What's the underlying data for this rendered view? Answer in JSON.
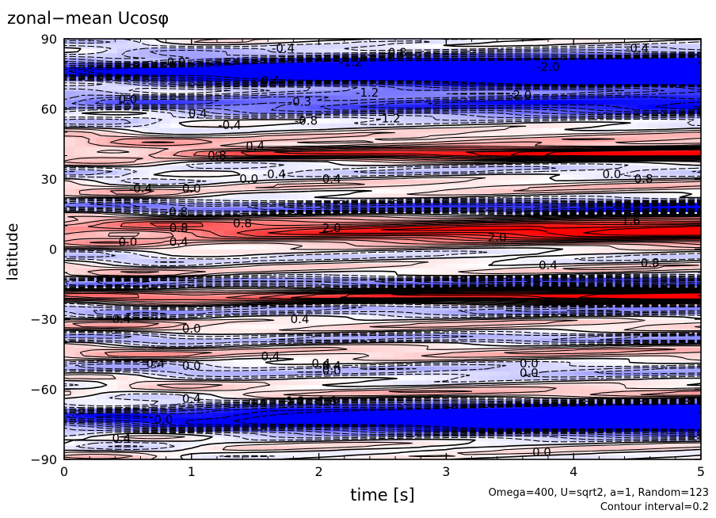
{
  "chart_data": {
    "type": "heatmap",
    "title": "zonal−mean Ucosφ",
    "xlabel": "time [s]",
    "ylabel": "latitude",
    "xlim": [
      0,
      5
    ],
    "ylim": [
      -90,
      90
    ],
    "x_ticks": [
      0,
      1,
      2,
      3,
      4,
      5
    ],
    "x_tick_labels": [
      "0",
      "1",
      "2",
      "3",
      "4",
      "5"
    ],
    "y_ticks": [
      -90,
      -60,
      -30,
      0,
      30,
      60,
      90
    ],
    "y_tick_labels": [
      "−90",
      "−60",
      "−30",
      "0",
      "30",
      "60",
      "90"
    ],
    "contour_interval": 0.2,
    "colormap": {
      "negative": "#0000ff",
      "zero": "#ffffff",
      "positive": "#ff0000"
    },
    "annotations": [
      "Omega=400, U=sqrt2, a=1, Random=123",
      "Contour interval=0.2"
    ],
    "contour_labels": [
      {
        "t": 0.88,
        "lat": 80,
        "text": "0.0"
      },
      {
        "t": 1.72,
        "lat": 86,
        "text": "-0.4"
      },
      {
        "t": 2.6,
        "lat": 84,
        "text": "-0.8"
      },
      {
        "t": 2.25,
        "lat": 80,
        "text": "-1.2"
      },
      {
        "t": 4.5,
        "lat": 86,
        "text": "-0.4"
      },
      {
        "t": 1.62,
        "lat": 72,
        "text": "0.4"
      },
      {
        "t": 0.5,
        "lat": 64,
        "text": "0.0"
      },
      {
        "t": 2.38,
        "lat": 67,
        "text": "-1.2"
      },
      {
        "t": 3.8,
        "lat": 78,
        "text": "-2.0"
      },
      {
        "t": 3.58,
        "lat": 66,
        "text": "-2.0"
      },
      {
        "t": 1.85,
        "lat": 63,
        "text": "-0.3"
      },
      {
        "t": 1.9,
        "lat": 55,
        "text": "-0.8"
      },
      {
        "t": 2.55,
        "lat": 56,
        "text": "-1.2"
      },
      {
        "t": 1.05,
        "lat": 58,
        "text": "0.4"
      },
      {
        "t": 1.3,
        "lat": 53,
        "text": "-0.4"
      },
      {
        "t": 1.5,
        "lat": 44,
        "text": "0.4"
      },
      {
        "t": 1.2,
        "lat": 40,
        "text": "0.8"
      },
      {
        "t": 1.65,
        "lat": 32,
        "text": "-0.4"
      },
      {
        "t": 0.6,
        "lat": 26,
        "text": "-0.4"
      },
      {
        "t": 1.0,
        "lat": 26,
        "text": "0.0"
      },
      {
        "t": 1.45,
        "lat": 30,
        "text": "0.0"
      },
      {
        "t": 2.1,
        "lat": 30,
        "text": "0.4"
      },
      {
        "t": 4.3,
        "lat": 32,
        "text": "0.0"
      },
      {
        "t": 4.55,
        "lat": 30,
        "text": "0.8"
      },
      {
        "t": 0.88,
        "lat": 16,
        "text": "-0.8"
      },
      {
        "t": 0.9,
        "lat": 9,
        "text": "0.8"
      },
      {
        "t": 1.4,
        "lat": 11,
        "text": "0.8"
      },
      {
        "t": 2.1,
        "lat": 9,
        "text": "2.0"
      },
      {
        "t": 3.4,
        "lat": 5,
        "text": "2.0"
      },
      {
        "t": 0.5,
        "lat": 3,
        "text": "0.0"
      },
      {
        "t": 0.9,
        "lat": 3,
        "text": "0.4"
      },
      {
        "t": 4.45,
        "lat": 12,
        "text": "1.6"
      },
      {
        "t": 3.8,
        "lat": -7,
        "text": "0.4"
      },
      {
        "t": 4.6,
        "lat": -6,
        "text": "0.8"
      },
      {
        "t": 0.45,
        "lat": -30,
        "text": "0.4"
      },
      {
        "t": 1.0,
        "lat": -34,
        "text": "0.0"
      },
      {
        "t": 1.85,
        "lat": -30,
        "text": "0.4"
      },
      {
        "t": 1.62,
        "lat": -46,
        "text": "0.4"
      },
      {
        "t": 2.0,
        "lat": -49,
        "text": "-0.4"
      },
      {
        "t": 2.1,
        "lat": -50,
        "text": "0.4"
      },
      {
        "t": 0.7,
        "lat": -49,
        "text": "-0.4"
      },
      {
        "t": 1.0,
        "lat": -50,
        "text": "0.0"
      },
      {
        "t": 2.1,
        "lat": -52,
        "text": "0.0"
      },
      {
        "t": 3.65,
        "lat": -49,
        "text": "0.0"
      },
      {
        "t": 3.65,
        "lat": -53,
        "text": "0.0"
      },
      {
        "t": 1.0,
        "lat": -64,
        "text": "0.4"
      },
      {
        "t": 1.5,
        "lat": -66,
        "text": "-0.4"
      },
      {
        "t": 1.8,
        "lat": -65,
        "text": "-1.2"
      },
      {
        "t": 2.05,
        "lat": -65,
        "text": "-1.6"
      },
      {
        "t": 0.78,
        "lat": -73,
        "text": "0.0"
      },
      {
        "t": 0.45,
        "lat": -81,
        "text": "0.4"
      },
      {
        "t": 3.75,
        "lat": -87,
        "text": "0.0"
      }
    ]
  }
}
